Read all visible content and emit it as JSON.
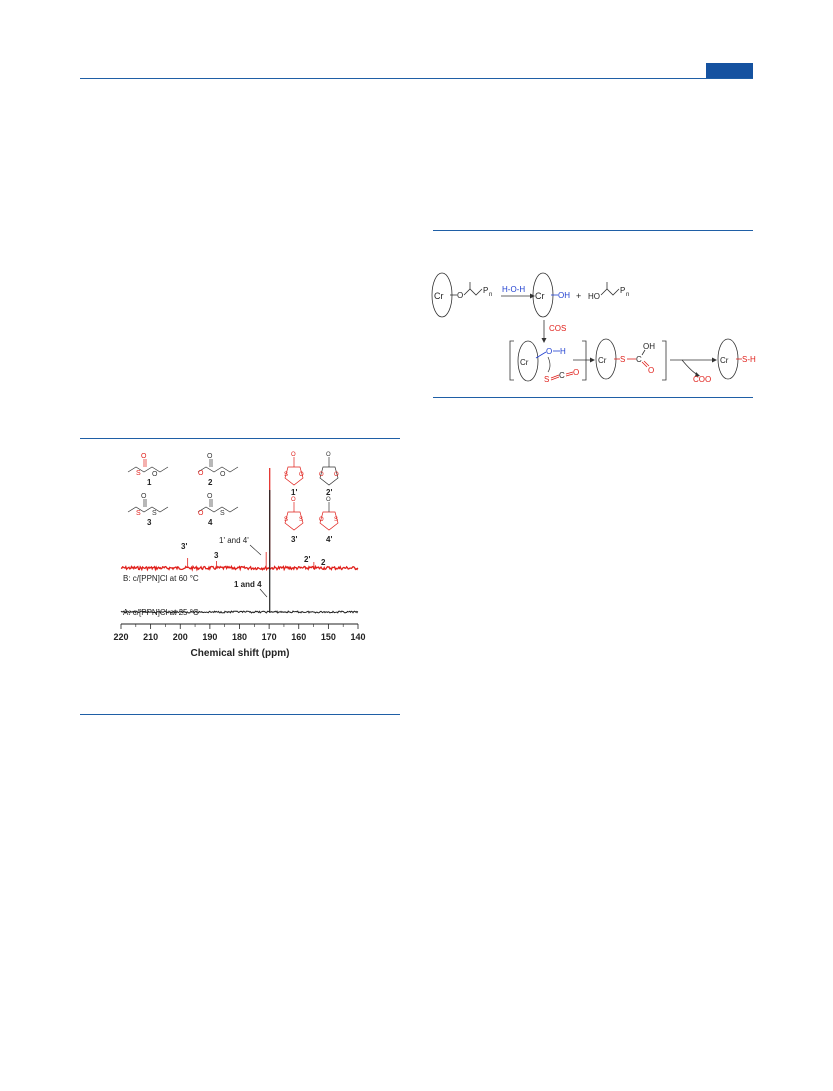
{
  "header": {
    "tab_color": "#1552a0",
    "rule_color": "#1f5fa6"
  },
  "scheme": {
    "labels": {
      "cr": "Cr",
      "o": "O",
      "pn": "P",
      "pn_sub": "n",
      "reagent": "H-O-H",
      "oh": "OH",
      "plus": "+",
      "ho": "HO",
      "cos": "COS",
      "h": "H",
      "s": "S",
      "c": "C",
      "s_h": "S-H",
      "coo": "COO"
    }
  },
  "figure": {
    "compound_labels": [
      "1",
      "2",
      "3",
      "4",
      "1'",
      "2'",
      "3'",
      "4'"
    ],
    "peak_labels": {
      "p3prime": "3'",
      "p3": "3",
      "p1prime4prime": "1' and 4'",
      "p2prime": "2'",
      "p2": "2",
      "p14": "1 and 4"
    },
    "trace_b_label": "B: c/[PPN]Cl at 60 °C",
    "trace_a_label": "A: c/[PPN]Cl at 25 °C"
  },
  "chart_data": {
    "type": "line",
    "xlabel": "Chemical shift (ppm)",
    "xlim": [
      220,
      140
    ],
    "x_ticks": [
      220,
      210,
      200,
      190,
      180,
      170,
      160,
      150,
      140
    ],
    "series": [
      {
        "name": "B: c/[PPN]Cl at 60 °C",
        "color": "#e0201b",
        "peaks": [
          {
            "x": 197.5,
            "height": 0.1
          },
          {
            "x": 187.8,
            "height": 0.07
          },
          {
            "x": 171.0,
            "height": 0.16
          },
          {
            "x": 169.8,
            "height": 1.0
          },
          {
            "x": 154.9,
            "height": 0.06
          }
        ]
      },
      {
        "name": "A: c/[PPN]Cl at 25 °C",
        "color": "#222222",
        "peaks": [
          {
            "x": 169.8,
            "height": 1.0
          }
        ]
      }
    ]
  }
}
